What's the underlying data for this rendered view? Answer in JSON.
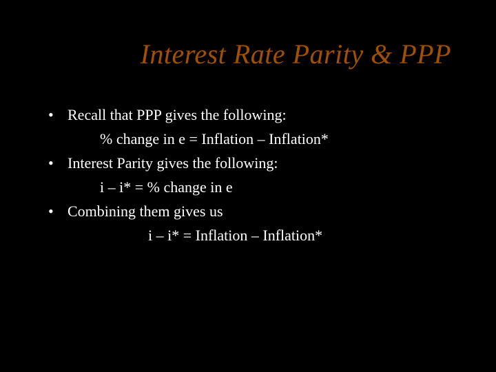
{
  "slide": {
    "title": "Interest Rate Parity & PPP",
    "title_color": "#a05000",
    "title_fontsize": 40,
    "title_style": "italic",
    "background_color": "#000000",
    "text_color": "#ffffff",
    "body_fontsize": 22,
    "bullets": [
      {
        "marker": "•",
        "text": "Recall that PPP gives the following:",
        "sub": "% change in e = Inflation – Inflation*",
        "sub_indent": "normal"
      },
      {
        "marker": "•",
        "text": "Interest Parity gives the following:",
        "sub": "i – i* = % change in e",
        "sub_indent": "normal"
      },
      {
        "marker": "•",
        "text": "Combining them gives us",
        "sub": "i – i* = Inflation – Inflation*",
        "sub_indent": "far"
      }
    ]
  }
}
